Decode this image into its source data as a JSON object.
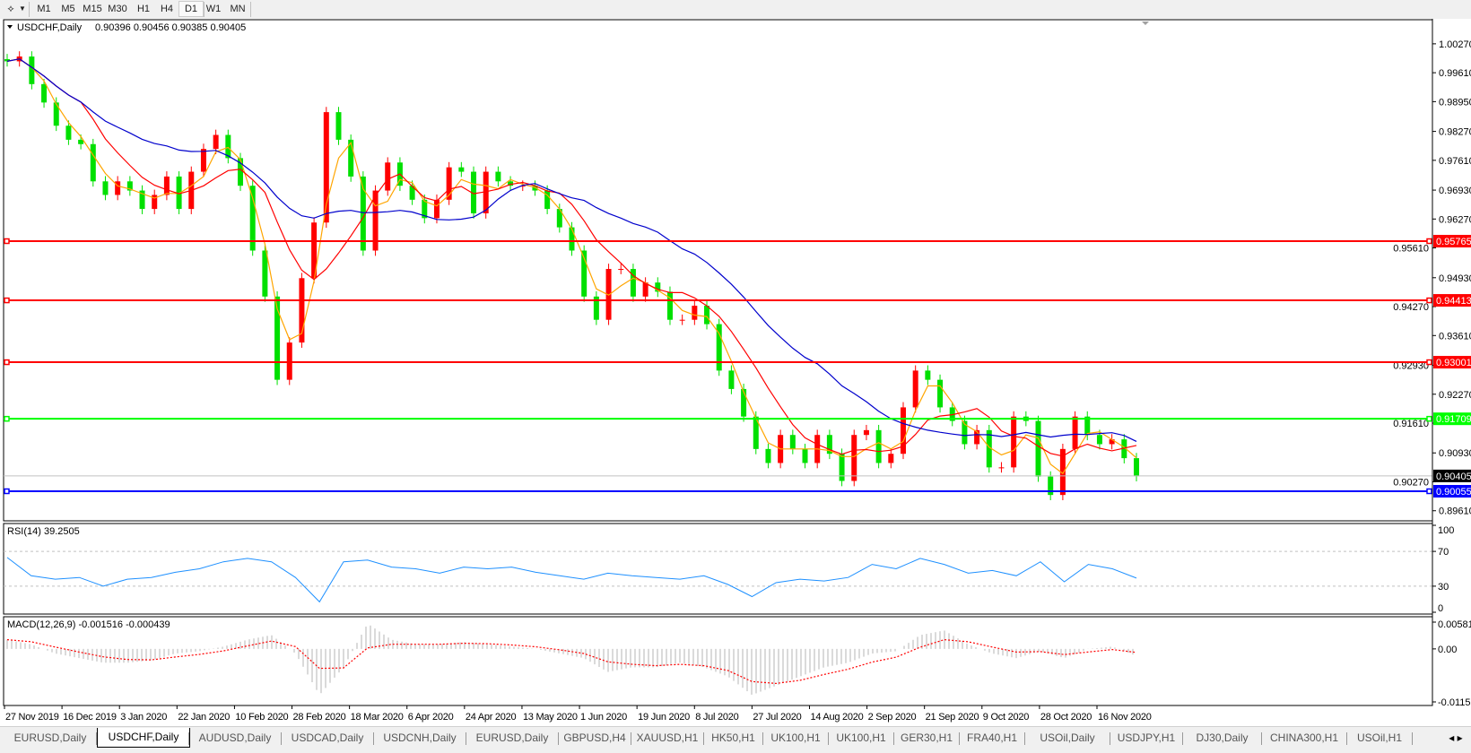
{
  "toolbar": {
    "timeframes": [
      "M1",
      "M5",
      "M15",
      "M30",
      "H1",
      "H4",
      "D1",
      "W1",
      "MN"
    ],
    "active_timeframe": "D1"
  },
  "chart_data": {
    "type": "candlestick",
    "title": "USDCHF,Daily",
    "ohlc_readout": "0.90396 0.90456 0.90385 0.90405",
    "bullish_color": "#ff0000",
    "bearish_color": "#00e000",
    "ylim": [
      0.8961,
      1.0027
    ],
    "y_ticks": [
      "1.00270",
      "0.99610",
      "0.98950",
      "0.98270",
      "0.97610",
      "0.96930",
      "0.96270",
      "0.95610",
      "0.94930",
      "0.94270",
      "0.93610",
      "0.92930",
      "0.92270",
      "0.91610",
      "0.90930",
      "0.90270",
      "0.89610"
    ],
    "x_tick_labels": [
      "27 Nov 2019",
      "16 Dec 2019",
      "3 Jan 2020",
      "22 Jan 2020",
      "10 Feb 2020",
      "28 Feb 2020",
      "18 Mar 2020",
      "6 Apr 2020",
      "24 Apr 2020",
      "13 May 2020",
      "1 Jun 2020",
      "19 Jun 2020",
      "8 Jul 2020",
      "27 Jul 2020",
      "14 Aug 2020",
      "2 Sep 2020",
      "21 Sep 2020",
      "9 Oct 2020",
      "28 Oct 2020",
      "16 Nov 2020"
    ],
    "closes": [
      0.9987,
      0.9998,
      0.9935,
      0.9893,
      0.984,
      0.9808,
      0.9798,
      0.9713,
      0.9682,
      0.9713,
      0.9692,
      0.965,
      0.9682,
      0.9724,
      0.965,
      0.9735,
      0.9787,
      0.9819,
      0.9766,
      0.9703,
      0.9555,
      0.945,
      0.926,
      0.9345,
      0.9492,
      0.9619,
      0.9871,
      0.9808,
      0.9724,
      0.9555,
      0.9692,
      0.9756,
      0.9703,
      0.9671,
      0.9629,
      0.9671,
      0.9745,
      0.9735,
      0.964,
      0.9735,
      0.9713,
      0.9703,
      0.9703,
      0.9692,
      0.965,
      0.9608,
      0.9555,
      0.945,
      0.9397,
      0.9513,
      0.9513,
      0.945,
      0.9482,
      0.9461,
      0.9397,
      0.9397,
      0.9429,
      0.9387,
      0.9281,
      0.9239,
      0.9176,
      0.9102,
      0.907,
      0.9134,
      0.9102,
      0.907,
      0.9134,
      0.9091,
      0.9029,
      0.9134,
      0.9145,
      0.907,
      0.9091,
      0.9197,
      0.9281,
      0.926,
      0.9197,
      0.9166,
      0.9113,
      0.9145,
      0.906,
      0.906,
      0.9176,
      0.9166,
      0.9039,
      0.8997,
      0.9102,
      0.9176,
      0.9134,
      0.9113,
      0.9124,
      0.9081,
      0.904
    ],
    "moving_averages": [
      {
        "color": "#ffa500"
      },
      {
        "color": "#ff0000"
      },
      {
        "color": "#0000cc"
      }
    ],
    "current_price": {
      "value": 0.90405,
      "label": "0.90405",
      "color": "#000000"
    },
    "horizontal_lines": [
      {
        "value": 0.95765,
        "label": "0.95765",
        "color": "#ff0000"
      },
      {
        "value": 0.94413,
        "label": "0.94413",
        "color": "#ff0000"
      },
      {
        "value": 0.93001,
        "label": "0.93001",
        "color": "#ff0000"
      },
      {
        "value": 0.91709,
        "label": "0.91709",
        "color": "#00ff00"
      },
      {
        "value": 0.90055,
        "label": "0.90055",
        "color": "#0000ff"
      }
    ],
    "rsi": {
      "label": "RSI(14) 39.2505",
      "ylim": [
        0,
        100
      ],
      "ticks": [
        "100",
        "70",
        "30",
        "0"
      ],
      "levels": [
        70,
        30
      ],
      "color": "#1e90ff",
      "values": [
        63,
        42,
        38,
        40,
        30,
        38,
        40,
        46,
        50,
        58,
        62,
        58,
        40,
        12,
        58,
        60,
        52,
        50,
        45,
        52,
        50,
        52,
        46,
        42,
        38,
        45,
        42,
        40,
        38,
        42,
        32,
        18,
        34,
        38,
        36,
        40,
        55,
        50,
        62,
        55,
        45,
        48,
        42,
        58,
        35,
        55,
        50,
        39.25
      ]
    },
    "macd": {
      "label": "MACD(12,26,9) -0.001516 -0.000439",
      "ylim": [
        -0.011514,
        0.005818
      ],
      "ticks": [
        "0.005818",
        "0.00",
        "-0.011514"
      ],
      "histogram_color": "#c0c0c0",
      "signal_color": "#ff0000",
      "values": [
        0.002,
        0.001,
        -0.001,
        -0.002,
        -0.003,
        -0.003,
        -0.0025,
        -0.001,
        -0.0005,
        0.0005,
        0.002,
        0.003,
        -0.001,
        -0.01,
        -0.004,
        0.0055,
        0.002,
        0.001,
        0.001,
        0.0015,
        0.001,
        0.0005,
        0,
        -0.001,
        -0.002,
        -0.005,
        -0.004,
        -0.004,
        -0.003,
        -0.004,
        -0.006,
        -0.01,
        -0.008,
        -0.006,
        -0.004,
        -0.003,
        -0.001,
        -0.0005,
        0.003,
        0.004,
        0.001,
        -0.001,
        -0.002,
        -0.0005,
        -0.002,
        0,
        0.0005,
        -0.001516
      ]
    }
  },
  "tabs": [
    {
      "label": "EURUSD,Daily"
    },
    {
      "label": "USDCHF,Daily",
      "active": true
    },
    {
      "label": "AUDUSD,Daily"
    },
    {
      "label": "USDCAD,Daily"
    },
    {
      "label": "USDCNH,Daily"
    },
    {
      "label": "EURUSD,Daily"
    },
    {
      "label": "GBPUSD,H4"
    },
    {
      "label": "XAUUSD,H1"
    },
    {
      "label": "HK50,H1"
    },
    {
      "label": "UK100,H1"
    },
    {
      "label": "UK100,H1"
    },
    {
      "label": "GER30,H1"
    },
    {
      "label": "FRA40,H1"
    },
    {
      "label": "USOil,Daily"
    },
    {
      "label": "USDJPY,H1"
    },
    {
      "label": "DJ30,Daily"
    },
    {
      "label": "CHINA300,H1"
    },
    {
      "label": "USOil,H1"
    }
  ]
}
